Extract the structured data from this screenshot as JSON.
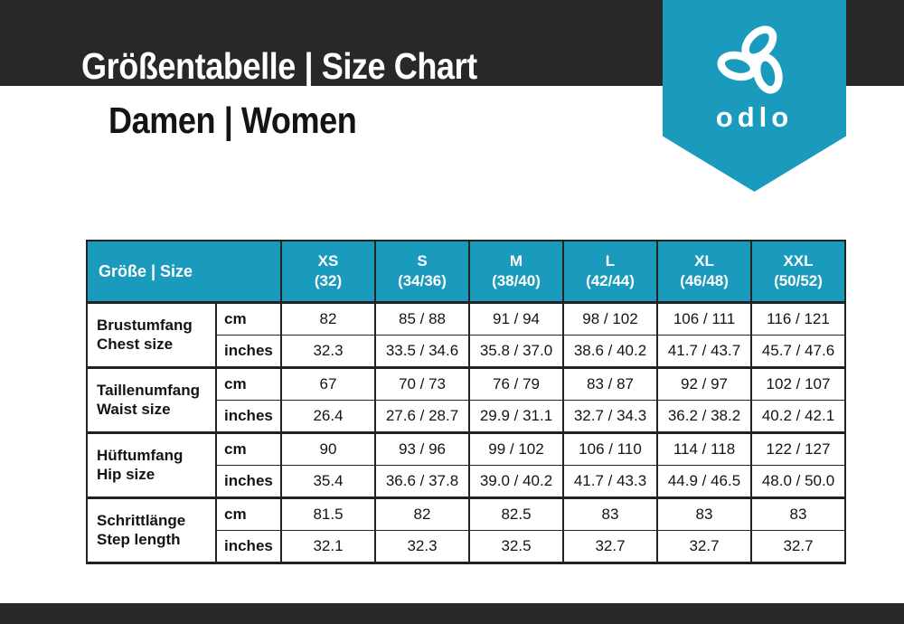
{
  "banner": {
    "title": "Größentabelle | Size Chart",
    "subtitle": "Damen | Women"
  },
  "brand": {
    "wordmark": "odlo"
  },
  "colors": {
    "teal": "#1a9abd",
    "dark_band": "#282828",
    "table_border": "#222222",
    "text_light": "#ffffff",
    "text_dark": "#141414"
  },
  "chart_data": {
    "type": "table",
    "title": "Größentabelle | Size Chart",
    "subtitle": "Damen | Women",
    "header_label": "Größe | Size",
    "size_columns": [
      {
        "size": "XS",
        "range": "(32)"
      },
      {
        "size": "S",
        "range": "(34/36)"
      },
      {
        "size": "M",
        "range": "(38/40)"
      },
      {
        "size": "L",
        "range": "(42/44)"
      },
      {
        "size": "XL",
        "range": "(46/48)"
      },
      {
        "size": "XXL",
        "range": "(50/52)"
      }
    ],
    "measurements": [
      {
        "label_de": "Brustumfang",
        "label_en": "Chest size",
        "rows": [
          {
            "unit": "cm",
            "values": [
              "82",
              "85 / 88",
              "91 / 94",
              "98 / 102",
              "106 / 111",
              "116 / 121"
            ]
          },
          {
            "unit": "inches",
            "values": [
              "32.3",
              "33.5 / 34.6",
              "35.8 / 37.0",
              "38.6 / 40.2",
              "41.7 / 43.7",
              "45.7 / 47.6"
            ]
          }
        ]
      },
      {
        "label_de": "Taillenumfang",
        "label_en": "Waist size",
        "rows": [
          {
            "unit": "cm",
            "values": [
              "67",
              "70 / 73",
              "76 / 79",
              "83 / 87",
              "92 / 97",
              "102 / 107"
            ]
          },
          {
            "unit": "inches",
            "values": [
              "26.4",
              "27.6 / 28.7",
              "29.9 / 31.1",
              "32.7 / 34.3",
              "36.2 / 38.2",
              "40.2 / 42.1"
            ]
          }
        ]
      },
      {
        "label_de": "Hüftumfang",
        "label_en": "Hip size",
        "rows": [
          {
            "unit": "cm",
            "values": [
              "90",
              "93 / 96",
              "99 / 102",
              "106 / 110",
              "114 / 118",
              "122 / 127"
            ]
          },
          {
            "unit": "inches",
            "values": [
              "35.4",
              "36.6 / 37.8",
              "39.0 / 40.2",
              "41.7 / 43.3",
              "44.9 / 46.5",
              "48.0 / 50.0"
            ]
          }
        ]
      },
      {
        "label_de": "Schrittlänge",
        "label_en": "Step length",
        "rows": [
          {
            "unit": "cm",
            "values": [
              "81.5",
              "82",
              "82.5",
              "83",
              "83",
              "83"
            ]
          },
          {
            "unit": "inches",
            "values": [
              "32.1",
              "32.3",
              "32.5",
              "32.7",
              "32.7",
              "32.7"
            ]
          }
        ]
      }
    ]
  }
}
